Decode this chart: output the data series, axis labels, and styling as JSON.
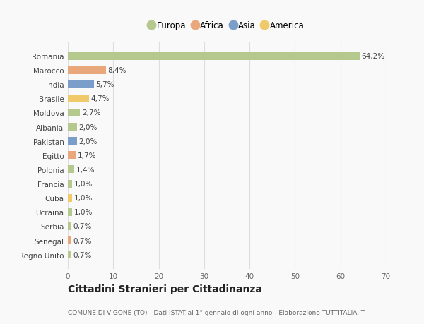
{
  "countries": [
    "Romania",
    "Marocco",
    "India",
    "Brasile",
    "Moldova",
    "Albania",
    "Pakistan",
    "Egitto",
    "Polonia",
    "Francia",
    "Cuba",
    "Ucraina",
    "Serbia",
    "Senegal",
    "Regno Unito"
  ],
  "values": [
    64.2,
    8.4,
    5.7,
    4.7,
    2.7,
    2.0,
    2.0,
    1.7,
    1.4,
    1.0,
    1.0,
    1.0,
    0.7,
    0.7,
    0.7
  ],
  "labels": [
    "64,2%",
    "8,4%",
    "5,7%",
    "4,7%",
    "2,7%",
    "2,0%",
    "2,0%",
    "1,7%",
    "1,4%",
    "1,0%",
    "1,0%",
    "1,0%",
    "0,7%",
    "0,7%",
    "0,7%"
  ],
  "colors": [
    "#b5c98e",
    "#e8a87c",
    "#7b9dc9",
    "#f0c96a",
    "#b5c98e",
    "#b5c98e",
    "#7b9dc9",
    "#e8a87c",
    "#b5c98e",
    "#b5c98e",
    "#f0c96a",
    "#b5c98e",
    "#b5c98e",
    "#e8a87c",
    "#b5c98e"
  ],
  "legend": [
    {
      "label": "Europa",
      "color": "#b5c98e"
    },
    {
      "label": "Africa",
      "color": "#e8a87c"
    },
    {
      "label": "Asia",
      "color": "#7b9dc9"
    },
    {
      "label": "America",
      "color": "#f0c96a"
    }
  ],
  "xlim": [
    0,
    70
  ],
  "xticks": [
    0,
    10,
    20,
    30,
    40,
    50,
    60,
    70
  ],
  "title": "Cittadini Stranieri per Cittadinanza",
  "subtitle": "COMUNE DI VIGONE (TO) - Dati ISTAT al 1° gennaio di ogni anno - Elaborazione TUTTITALIA.IT",
  "background_color": "#f9f9f9",
  "grid_color": "#dddddd",
  "bar_height": 0.55,
  "label_fontsize": 7.5,
  "tick_fontsize": 7.5,
  "title_fontsize": 10,
  "subtitle_fontsize": 6.5,
  "legend_fontsize": 8.5
}
